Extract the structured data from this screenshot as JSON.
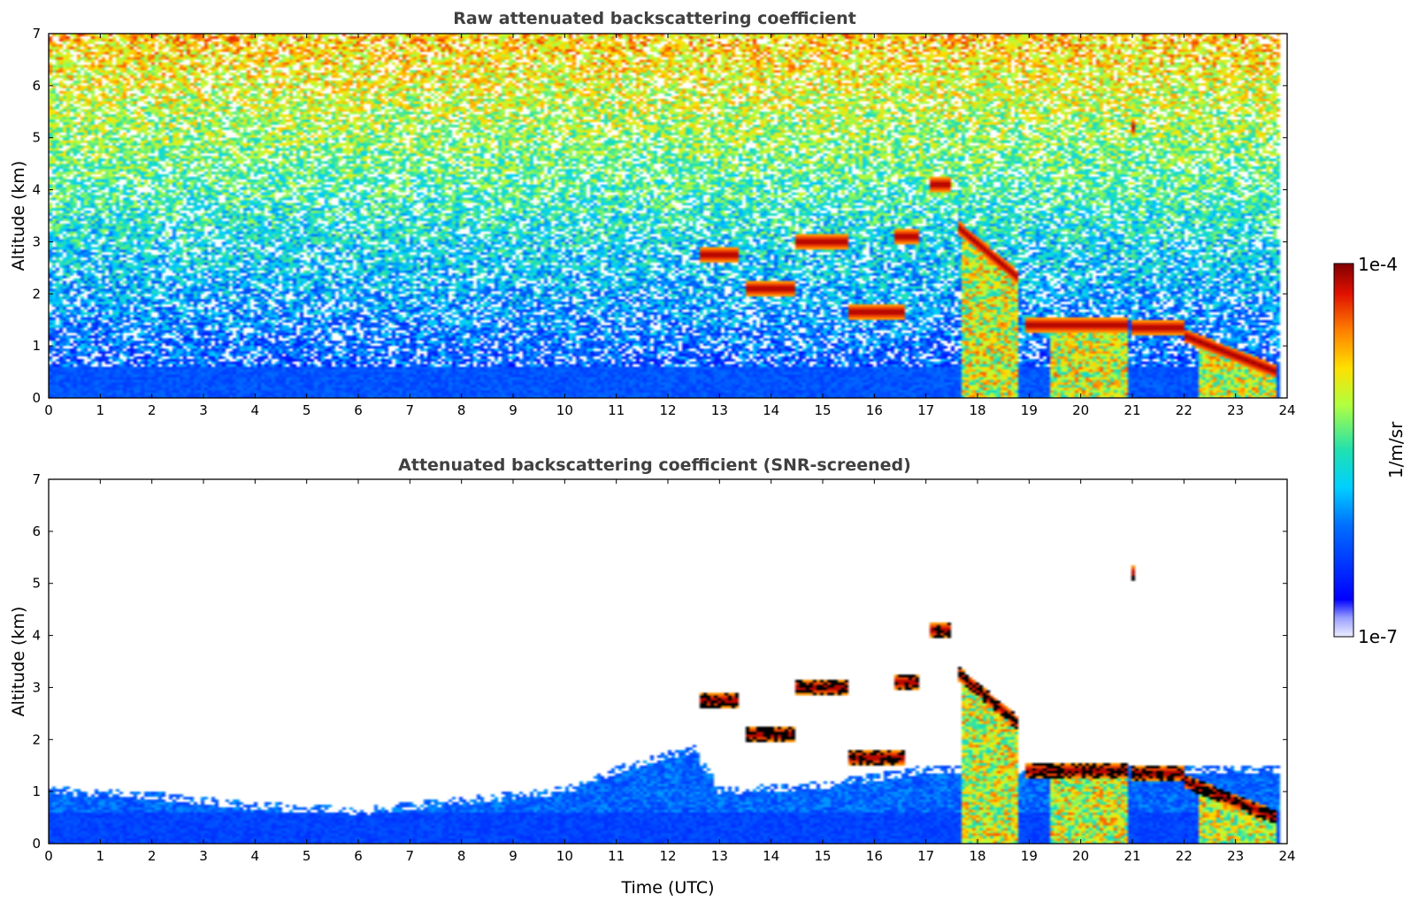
{
  "chart_data": [
    {
      "type": "heatmap",
      "id": "raw",
      "title": "Raw attenuated backscattering coefficient",
      "xlabel": "",
      "ylabel": "Altitude (km)",
      "xlim": [
        0,
        24
      ],
      "ylim": [
        0,
        7
      ],
      "x_ticks": [
        0,
        1,
        2,
        3,
        4,
        5,
        6,
        7,
        8,
        9,
        10,
        11,
        12,
        13,
        14,
        15,
        16,
        17,
        18,
        19,
        20,
        21,
        22,
        23,
        24
      ],
      "y_ticks": [
        0,
        1,
        2,
        3,
        4,
        5,
        6,
        7
      ],
      "features": {
        "boundary_layer_top_km": 0.6,
        "cloud_layers": [
          {
            "t0": 12.6,
            "t1": 13.4,
            "alt": 2.75
          },
          {
            "t0": 13.5,
            "t1": 14.5,
            "alt": 2.1
          },
          {
            "t0": 14.5,
            "t1": 15.5,
            "alt": 3.0
          },
          {
            "t0": 15.5,
            "t1": 16.6,
            "alt": 1.65
          },
          {
            "t0": 16.4,
            "t1": 16.9,
            "alt": 3.1
          },
          {
            "t0": 17.1,
            "t1": 17.5,
            "alt": 4.1
          },
          {
            "t0": 17.6,
            "t1": 18.8,
            "alt": 3.3,
            "alt_end": 2.3
          },
          {
            "t0": 18.9,
            "t1": 20.9,
            "alt": 1.4
          },
          {
            "t0": 21.0,
            "t1": 22.0,
            "alt": 1.35
          },
          {
            "t0": 22.0,
            "t1": 23.8,
            "alt": 1.2,
            "alt_end": 0.5
          },
          {
            "t0": 20.95,
            "t1": 21.05,
            "alt": 5.2
          }
        ],
        "precip_shafts": [
          {
            "t0": 17.7,
            "t1": 18.9
          },
          {
            "t0": 19.4,
            "t1": 20.9
          },
          {
            "t0": 22.3,
            "t1": 23.8
          }
        ]
      }
    },
    {
      "type": "heatmap",
      "id": "snr",
      "title": "Attenuated backscattering coefficient (SNR-screened)",
      "xlabel": "Time (UTC)",
      "ylabel": "Altitude (km)",
      "xlim": [
        0,
        24
      ],
      "ylim": [
        0,
        7
      ],
      "x_ticks": [
        0,
        1,
        2,
        3,
        4,
        5,
        6,
        7,
        8,
        9,
        10,
        11,
        12,
        13,
        14,
        15,
        16,
        17,
        18,
        19,
        20,
        21,
        22,
        23,
        24
      ],
      "y_ticks": [
        0,
        1,
        2,
        3,
        4,
        5,
        6,
        7
      ],
      "features": {
        "screened_top_km": [
          [
            0,
            1.1
          ],
          [
            2,
            1.0
          ],
          [
            4,
            0.8
          ],
          [
            6,
            0.7
          ],
          [
            8,
            0.9
          ],
          [
            10,
            1.1
          ],
          [
            11,
            1.5
          ],
          [
            12.5,
            1.9
          ],
          [
            13,
            1.1
          ],
          [
            15,
            1.2
          ],
          [
            17,
            1.5
          ],
          [
            17.7,
            1.5
          ],
          [
            24,
            1.5
          ]
        ]
      }
    }
  ],
  "colorbar": {
    "label": "1/m/sr",
    "max_label": "1e-4",
    "min_label": "1e-7",
    "colormap": "jet",
    "scale": "log"
  }
}
